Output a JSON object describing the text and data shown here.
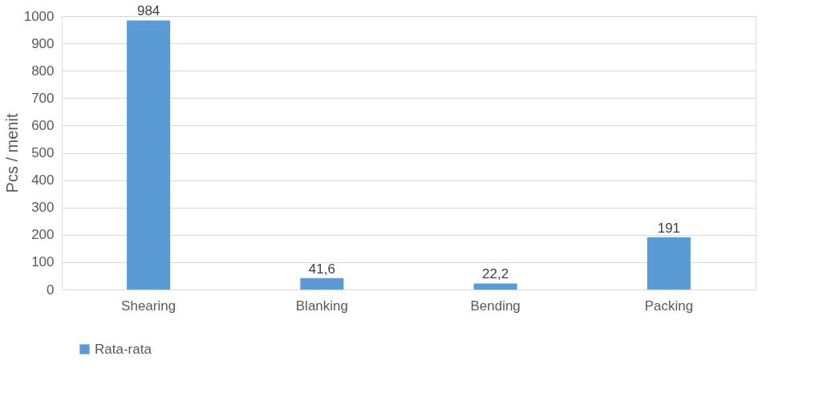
{
  "chart_data": {
    "type": "bar",
    "ylabel": "Pcs / menit",
    "categories": [
      "Shearing",
      "Blanking",
      "Bending",
      "Packing"
    ],
    "series": [
      {
        "name": "Rata-rata",
        "color": "#5b9bd5",
        "values": [
          984,
          41.6,
          22.2,
          191
        ],
        "value_labels": [
          "984",
          "41,6",
          "22,2",
          "191"
        ]
      }
    ],
    "ylim": [
      0,
      1000
    ],
    "yticks": [
      0,
      100,
      200,
      300,
      400,
      500,
      600,
      700,
      800,
      900,
      1000
    ],
    "grid": "y",
    "legend": "bottom"
  }
}
